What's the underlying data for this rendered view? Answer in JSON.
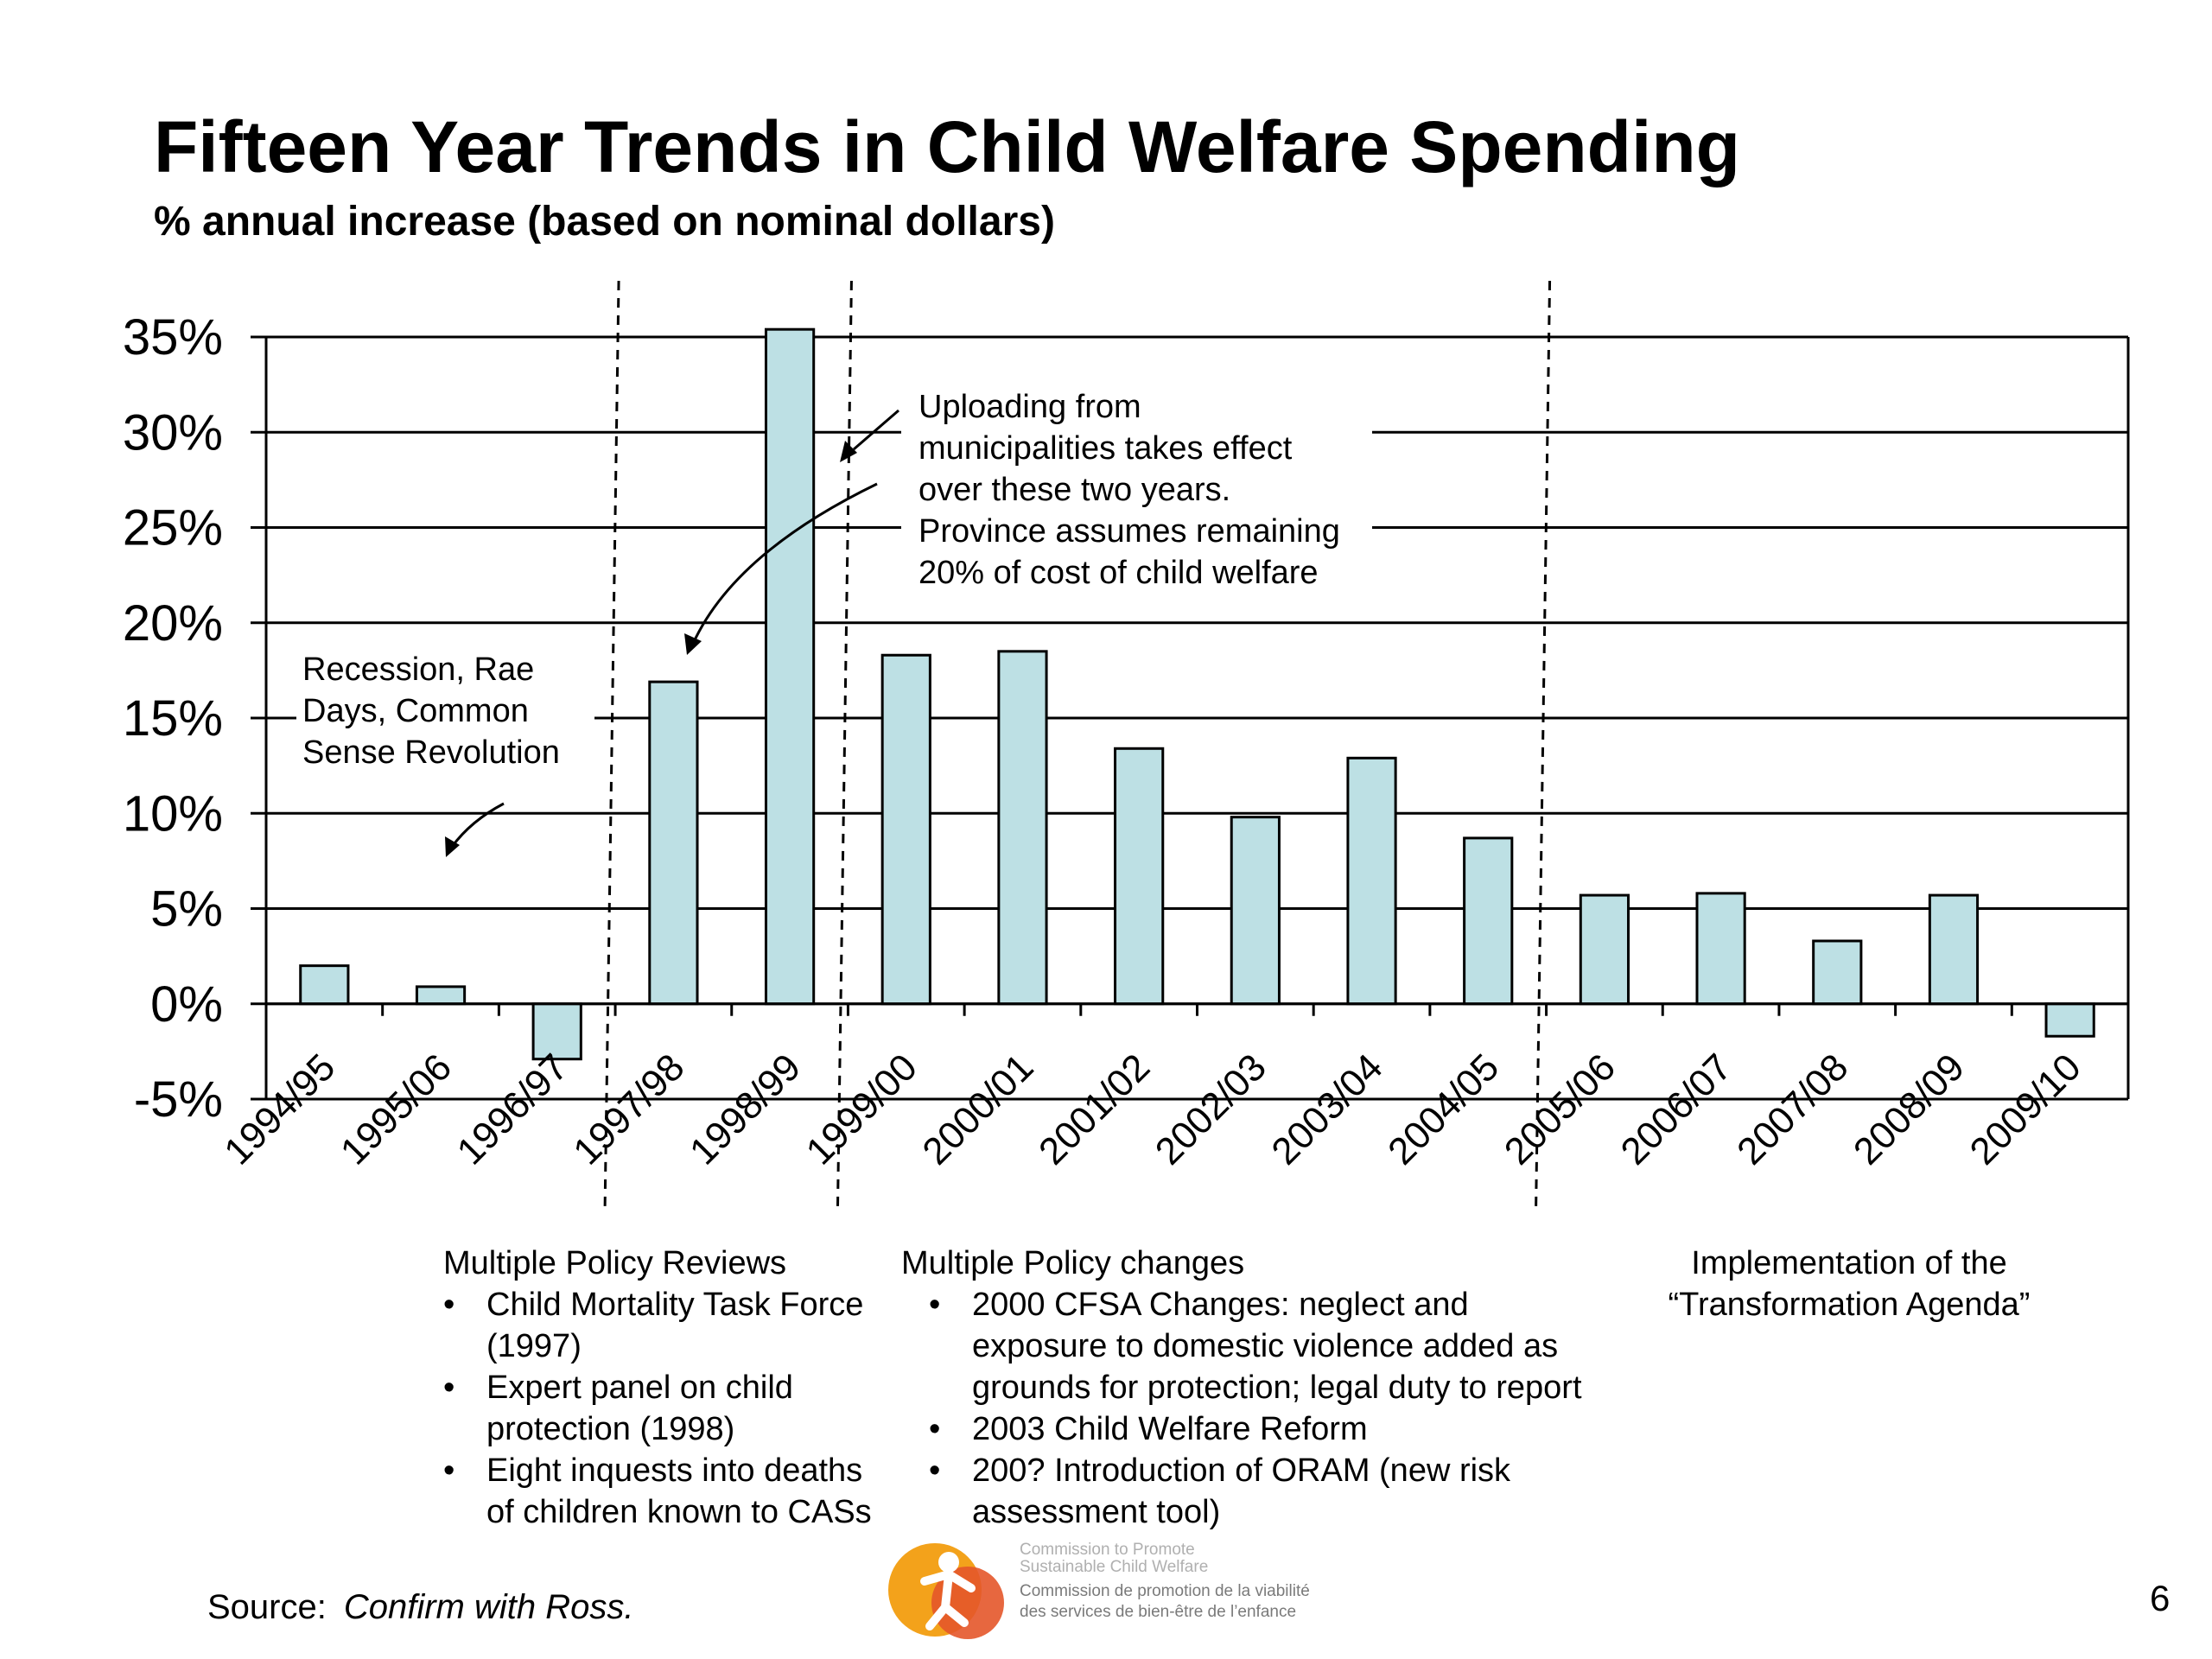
{
  "title": "Fifteen Year Trends in Child Welfare Spending",
  "subtitle": "% annual increase (based on nominal dollars)",
  "chart_data": {
    "type": "bar",
    "categories": [
      "1994/95",
      "1995/06",
      "1996/97",
      "1997/98",
      "1998/99",
      "1999/00",
      "2000/01",
      "2001/02",
      "2002/03",
      "2003/04",
      "2004/05",
      "2005/06",
      "2006/07",
      "2007/08",
      "2008/09",
      "2009/10"
    ],
    "values": [
      2.0,
      0.9,
      -2.9,
      16.9,
      35.4,
      18.3,
      18.5,
      13.4,
      9.8,
      12.9,
      8.7,
      5.7,
      5.8,
      3.3,
      5.7,
      -1.7
    ],
    "title": "Fifteen Year Trends in Child Welfare Spending",
    "subtitle": "% annual increase (based on nominal dollars)",
    "xlabel": "",
    "ylabel": "",
    "ylim": [
      -5,
      35
    ],
    "yticks": [
      35,
      30,
      25,
      20,
      15,
      10,
      5,
      0,
      -5
    ],
    "ytick_labels": [
      "35%",
      "30%",
      "25%",
      "20%",
      "15%",
      "10%",
      "5%",
      "0%",
      "-5%"
    ],
    "grid": true,
    "legend": "none",
    "bar_color": "#bde0e4",
    "bar_edge_color": "#000000",
    "period_dividers_after": [
      "1996/97",
      "1998/99",
      "2004/05"
    ],
    "annotations": [
      "Recession, Rae Days, Common Sense Revolution",
      "Uploading from municipalities takes effect over these two years. Province assumes remaining 20% of cost of child welfare"
    ]
  },
  "annotation_recession": {
    "lines": [
      "Recession, Rae",
      "Days, Common",
      "Sense Revolution"
    ]
  },
  "annotation_uploading": {
    "lines": [
      "Uploading from",
      "municipalities takes effect",
      "over these two years.",
      "Province assumes remaining",
      "20% of cost of child welfare"
    ]
  },
  "notes": {
    "policy_reviews": {
      "title": "Multiple Policy Reviews",
      "items": [
        "Child Mortality Task Force (1997)",
        "Expert panel on child protection (1998)",
        "Eight inquests into deaths of children known to CASs"
      ]
    },
    "policy_changes": {
      "title": "Multiple Policy changes",
      "items": [
        "2000 CFSA Changes:  neglect and exposure to domestic violence added as grounds for protection; legal duty to report",
        "2003 Child Welfare Reform",
        "200? Introduction of ORAM (new risk assessment tool)"
      ]
    },
    "transformation": {
      "lines": [
        "Implementation of  the",
        "“Transformation Agenda”"
      ]
    }
  },
  "source": {
    "label": "Source:",
    "value": "Confirm with Ross."
  },
  "page_number": "6",
  "logo": {
    "line1": "Commission to Promote",
    "line2": "Sustainable Child Welfare",
    "line3": "Commission de promotion de la viabilité",
    "line4": "des services de bien-être de l’enfance",
    "colors": [
      "#f3a21b",
      "#e4572a",
      "#f7c948"
    ]
  }
}
